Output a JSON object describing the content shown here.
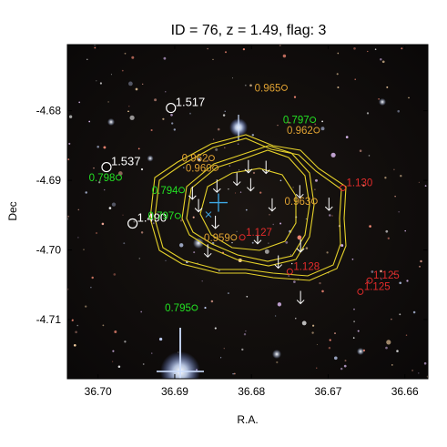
{
  "chart_data": {
    "type": "scatter",
    "title": "ID = 76, z = 1.49, flag: 3",
    "xlabel": "R.A.",
    "ylabel": "Dec",
    "xlim": [
      36.704,
      36.657
    ],
    "ylim": [
      -4.7185,
      -4.6705
    ],
    "x_ticks": [
      {
        "value": 36.7,
        "label": "36.70"
      },
      {
        "value": 36.69,
        "label": "36.69"
      },
      {
        "value": 36.68,
        "label": "36.68"
      },
      {
        "value": 36.67,
        "label": "36.67"
      },
      {
        "value": 36.66,
        "label": "36.66"
      }
    ],
    "y_ticks": [
      {
        "value": -4.68,
        "label": "-4.68"
      },
      {
        "value": -4.69,
        "label": "-4.69"
      },
      {
        "value": -4.7,
        "label": "-4.70"
      },
      {
        "value": -4.71,
        "label": "-4.71"
      }
    ],
    "background": "color composite sky image with stars and galaxies",
    "cluster_center": {
      "ra": 36.6843,
      "dec": -4.6932
    },
    "center_marker_color": "#3fa9e6",
    "contour_color": "#e6d22a",
    "colors": {
      "white": "#ffffff",
      "green": "#23e023",
      "orange": "#e0a232",
      "red": "#e32b2b"
    },
    "annotations": [
      {
        "text": "1.517",
        "ra": 36.6905,
        "dec": -4.6796,
        "color": "white",
        "offset": "right"
      },
      {
        "text": "1.537",
        "ra": 36.6989,
        "dec": -4.6881,
        "color": "white",
        "offset": "right"
      },
      {
        "text": "1.490",
        "ra": 36.6955,
        "dec": -4.6962,
        "color": "white",
        "offset": "right"
      },
      {
        "text": "0.798",
        "ra": 36.6973,
        "dec": -4.6896,
        "color": "green",
        "offset": "left"
      },
      {
        "text": "0.794",
        "ra": 36.6891,
        "dec": -4.6914,
        "color": "green",
        "offset": "left"
      },
      {
        "text": "0.797",
        "ra": 36.6896,
        "dec": -4.6951,
        "color": "green",
        "offset": "left"
      },
      {
        "text": "0.797",
        "ra": 36.672,
        "dec": -4.6813,
        "color": "green",
        "offset": "left"
      },
      {
        "text": "0.795",
        "ra": 36.6874,
        "dec": -4.7083,
        "color": "green",
        "offset": "left"
      },
      {
        "text": "0.965",
        "ra": 36.6757,
        "dec": -4.6767,
        "color": "orange",
        "offset": "left"
      },
      {
        "text": "0.962",
        "ra": 36.6715,
        "dec": -4.6828,
        "color": "orange",
        "offset": "left"
      },
      {
        "text": "0.962",
        "ra": 36.6852,
        "dec": -4.6868,
        "color": "orange",
        "offset": "left"
      },
      {
        "text": "0.960",
        "ra": 36.6847,
        "dec": -4.6882,
        "color": "orange",
        "offset": "left"
      },
      {
        "text": "0.963",
        "ra": 36.6718,
        "dec": -4.693,
        "color": "orange",
        "offset": "left"
      },
      {
        "text": "0.959",
        "ra": 36.6823,
        "dec": -4.6982,
        "color": "orange",
        "offset": "left"
      },
      {
        "text": "1.130",
        "ra": 36.6681,
        "dec": -4.6911,
        "color": "red",
        "offset": "right"
      },
      {
        "text": "1.127",
        "ra": 36.6812,
        "dec": -4.6982,
        "color": "red",
        "offset": "right"
      },
      {
        "text": "1.128",
        "ra": 36.675,
        "dec": -4.7031,
        "color": "red",
        "offset": "right"
      },
      {
        "text": "1.125",
        "ra": 36.6646,
        "dec": -4.7044,
        "color": "red",
        "offset": "right"
      },
      {
        "text": "1.125",
        "ra": 36.6658,
        "dec": -4.706,
        "color": "red",
        "offset": "right"
      }
    ],
    "arrows": [
      {
        "ra": 36.6804,
        "dec": -4.688
      },
      {
        "ra": 36.6781,
        "dec": -4.6881
      },
      {
        "ra": 36.6819,
        "dec": -4.6898
      },
      {
        "ra": 36.6845,
        "dec": -4.6908
      },
      {
        "ra": 36.6801,
        "dec": -4.6906
      },
      {
        "ra": 36.6737,
        "dec": -4.6916
      },
      {
        "ra": 36.6877,
        "dec": -4.6918
      },
      {
        "ra": 36.6869,
        "dec": -4.6936
      },
      {
        "ra": 36.6773,
        "dec": -4.6935
      },
      {
        "ra": 36.6699,
        "dec": -4.6934
      },
      {
        "ra": 36.6847,
        "dec": -4.696
      },
      {
        "ra": 36.6792,
        "dec": -4.6982
      },
      {
        "ra": 36.6736,
        "dec": -4.6994
      },
      {
        "ra": 36.6857,
        "dec": -4.7001
      },
      {
        "ra": 36.6765,
        "dec": -4.7017
      },
      {
        "ra": 36.6736,
        "dec": -4.7068
      }
    ]
  }
}
